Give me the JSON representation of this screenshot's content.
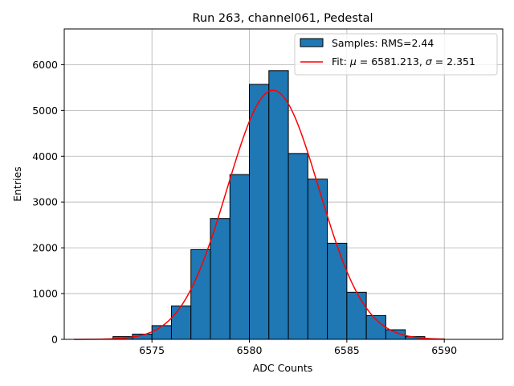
{
  "chart_data": {
    "type": "bar",
    "title": "Run 263, channel061, Pedestal",
    "xlabel": "ADC Counts",
    "ylabel": "Entries",
    "xlim": [
      6570.5,
      6593
    ],
    "ylim": [
      0,
      6780
    ],
    "xticks": [
      6575,
      6580,
      6585,
      6590
    ],
    "yticks": [
      0,
      1000,
      2000,
      3000,
      4000,
      5000,
      6000
    ],
    "grid": true,
    "legend_position": "top-right",
    "histogram": {
      "name": "Samples: RMS=2.44",
      "color": "#1f77b4",
      "bin_width": 1,
      "bins": [
        {
          "left": 6573,
          "value": 60
        },
        {
          "left": 6574,
          "value": 115
        },
        {
          "left": 6575,
          "value": 300
        },
        {
          "left": 6576,
          "value": 730
        },
        {
          "left": 6577,
          "value": 1960
        },
        {
          "left": 6578,
          "value": 2640
        },
        {
          "left": 6579,
          "value": 3600
        },
        {
          "left": 6580,
          "value": 5570
        },
        {
          "left": 6581,
          "value": 5870
        },
        {
          "left": 6582,
          "value": 4060
        },
        {
          "left": 6583,
          "value": 3500
        },
        {
          "left": 6584,
          "value": 2100
        },
        {
          "left": 6585,
          "value": 1030
        },
        {
          "left": 6586,
          "value": 520
        },
        {
          "left": 6587,
          "value": 210
        },
        {
          "left": 6588,
          "value": 60
        },
        {
          "left": 6589,
          "value": 10
        }
      ]
    },
    "fit": {
      "name": "Fit: μ = 6581.213, σ = 2.351",
      "name_parts": {
        "prefix": "Fit: ",
        "mu": "μ",
        "mid": " = 6581.213, ",
        "sigma": "σ",
        "suffix": " = 2.351"
      },
      "color": "#ff0000",
      "mu": 6581.213,
      "sigma": 2.351,
      "amplitude": 5440,
      "x_range": [
        6571,
        6590
      ]
    }
  }
}
